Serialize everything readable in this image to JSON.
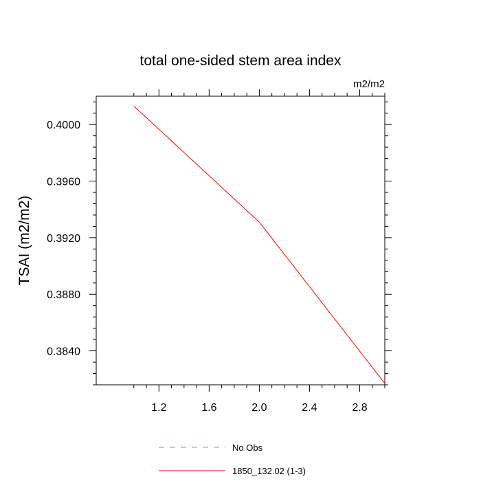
{
  "chart_data": {
    "type": "line",
    "title": "total one-sided stem area index",
    "units_label": "m2/m2",
    "ylabel": "TSAI  (m2/m2)",
    "xlabel": "",
    "xlim": [
      0.7,
      3.0
    ],
    "ylim": [
      0.3816,
      0.402
    ],
    "x_ticks": [
      1.2,
      1.6,
      2.0,
      2.4,
      2.8
    ],
    "x_tick_labels": [
      "1.2",
      "1.6",
      "2.0",
      "2.4",
      "2.8"
    ],
    "y_ticks": [
      0.384,
      0.388,
      0.392,
      0.396,
      0.4
    ],
    "y_tick_labels": [
      "0.3840",
      "0.3880",
      "0.3920",
      "0.3960",
      "0.4000"
    ],
    "grid": false,
    "legend_position": "bottom",
    "series": [
      {
        "name": "No Obs",
        "color": "#8080ff",
        "style": "dashed",
        "x": [],
        "y": []
      },
      {
        "name": "1850_132.02 (1-3)",
        "color": "#ff0000",
        "style": "solid",
        "x": [
          1.0,
          2.0,
          3.0
        ],
        "y": [
          0.4013,
          0.3931,
          0.3817
        ]
      }
    ]
  }
}
